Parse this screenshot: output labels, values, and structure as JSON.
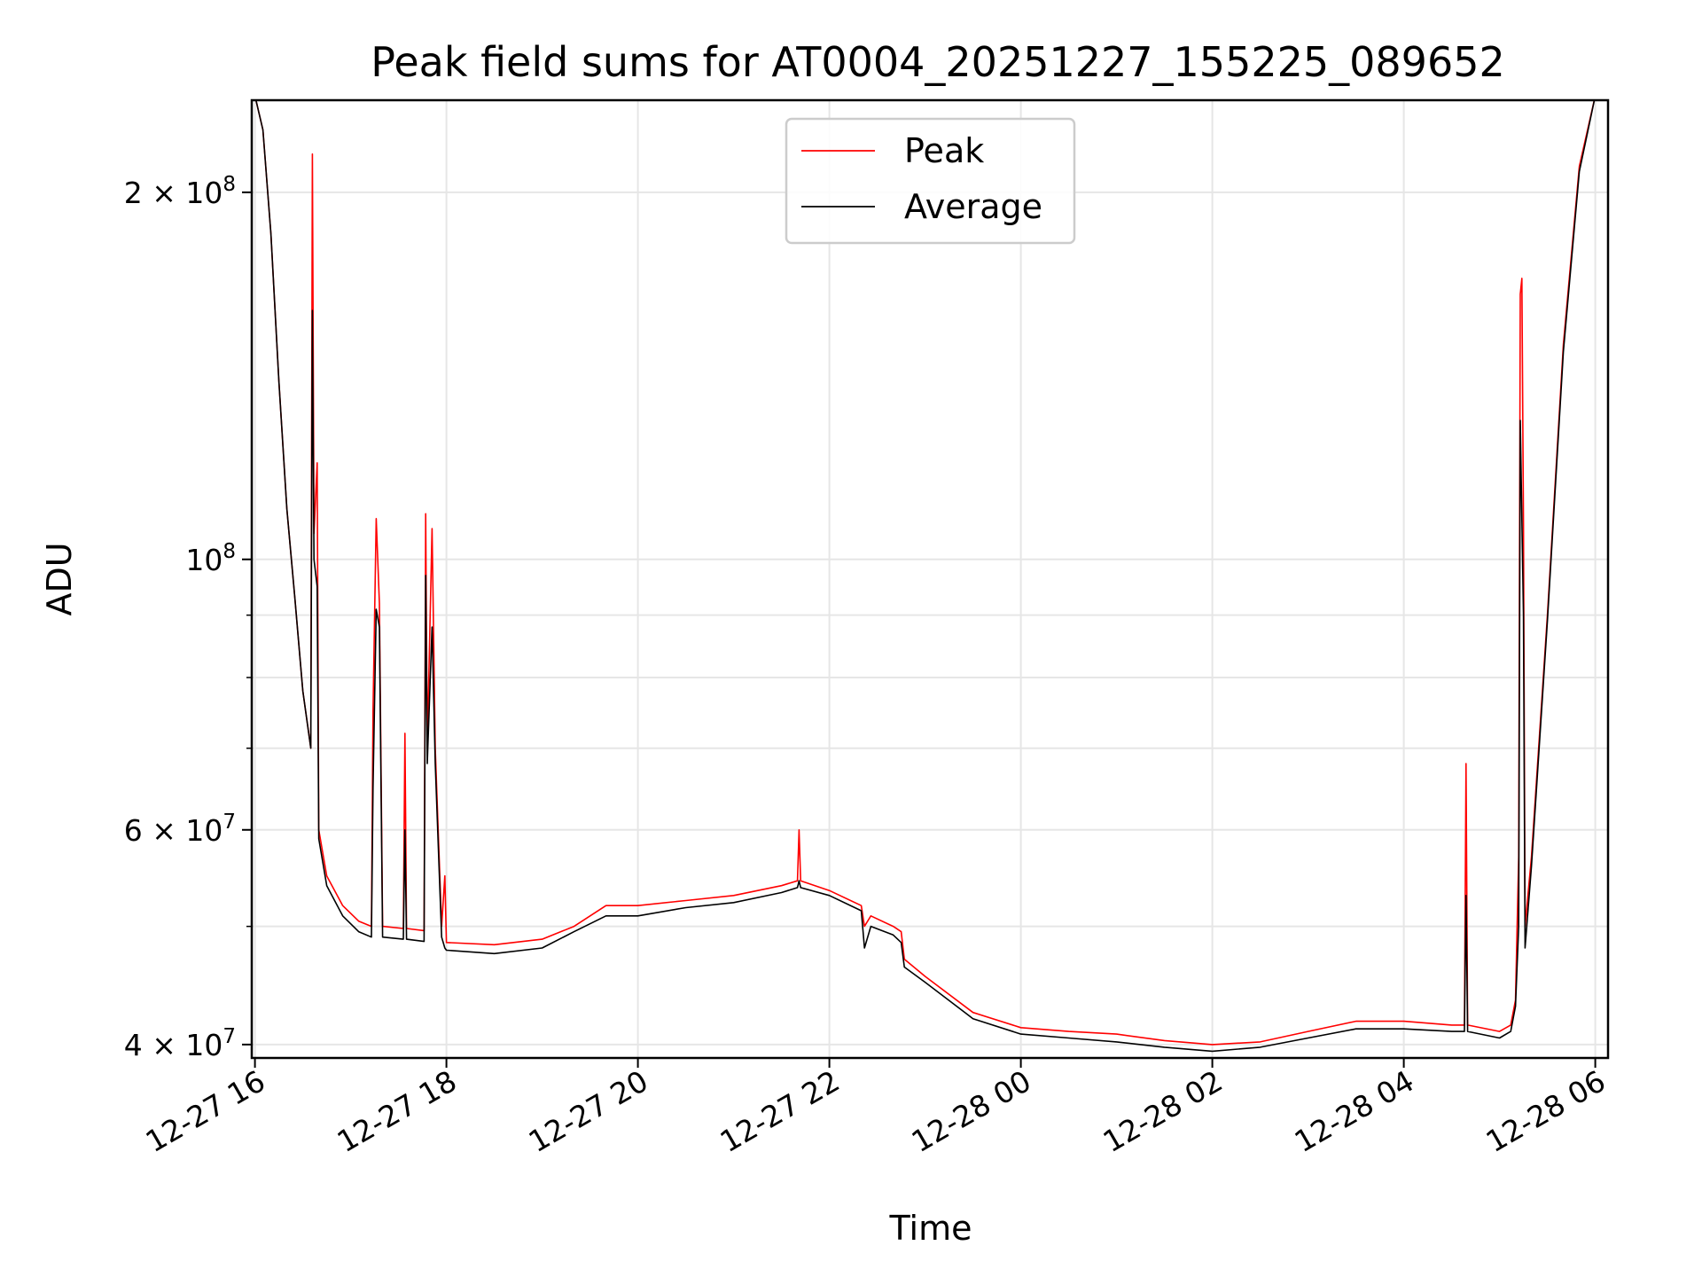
{
  "chart_data": {
    "type": "line",
    "title": "Peak field sums for AT0004_20251227_155225_089652",
    "xlabel": "Time",
    "ylabel": "ADU",
    "y_scale": "log",
    "grid": true,
    "legend_position": "top-center",
    "xlim": [
      "2025-12-27 15:58",
      "2025-12-28 06:08"
    ],
    "ylim": [
      39000000,
      238000000
    ],
    "x_ticks": [
      {
        "value": "2025-12-27 16:00",
        "label": "12-27 16"
      },
      {
        "value": "2025-12-27 18:00",
        "label": "12-27 18"
      },
      {
        "value": "2025-12-27 20:00",
        "label": "12-27 20"
      },
      {
        "value": "2025-12-27 22:00",
        "label": "12-27 22"
      },
      {
        "value": "2025-12-28 00:00",
        "label": "12-28 00"
      },
      {
        "value": "2025-12-28 02:00",
        "label": "12-28 02"
      },
      {
        "value": "2025-12-28 04:00",
        "label": "12-28 04"
      },
      {
        "value": "2025-12-28 06:00",
        "label": "12-28 06"
      }
    ],
    "y_ticks": [
      {
        "value": 40000000,
        "base": "4",
        "exp": "7"
      },
      {
        "value": 60000000,
        "base": "6",
        "exp": "7"
      },
      {
        "value": 100000000,
        "base": "",
        "exp": "8"
      },
      {
        "value": 200000000,
        "base": "2",
        "exp": "8"
      }
    ],
    "y_minor_ticks": [
      50000000,
      70000000,
      80000000,
      90000000
    ],
    "series": [
      {
        "name": "Peak",
        "color": "#ff0000",
        "points": [
          [
            "2025-12-27 16:00",
            240000000
          ],
          [
            "2025-12-27 16:05",
            225000000
          ],
          [
            "2025-12-27 16:10",
            185000000
          ],
          [
            "2025-12-27 16:15",
            140000000
          ],
          [
            "2025-12-27 16:20",
            110000000
          ],
          [
            "2025-12-27 16:25",
            93000000
          ],
          [
            "2025-12-27 16:30",
            78000000
          ],
          [
            "2025-12-27 16:35",
            70000000
          ],
          [
            "2025-12-27 16:36",
            215000000
          ],
          [
            "2025-12-27 16:37",
            105000000
          ],
          [
            "2025-12-27 16:39",
            120000000
          ],
          [
            "2025-12-27 16:40",
            60000000
          ],
          [
            "2025-12-27 16:45",
            55000000
          ],
          [
            "2025-12-27 16:55",
            52000000
          ],
          [
            "2025-12-27 17:05",
            50500000
          ],
          [
            "2025-12-27 17:13",
            50000000
          ],
          [
            "2025-12-27 17:14",
            75000000
          ],
          [
            "2025-12-27 17:16",
            108000000
          ],
          [
            "2025-12-27 17:18",
            92000000
          ],
          [
            "2025-12-27 17:20",
            50000000
          ],
          [
            "2025-12-27 17:33",
            49800000
          ],
          [
            "2025-12-27 17:34",
            72000000
          ],
          [
            "2025-12-27 17:35",
            49800000
          ],
          [
            "2025-12-27 17:46",
            49600000
          ],
          [
            "2025-12-27 17:47",
            109000000
          ],
          [
            "2025-12-27 17:48",
            70000000
          ],
          [
            "2025-12-27 17:51",
            106000000
          ],
          [
            "2025-12-27 17:53",
            70000000
          ],
          [
            "2025-12-27 17:57",
            50000000
          ],
          [
            "2025-12-27 17:59",
            55000000
          ],
          [
            "2025-12-27 18:00",
            48500000
          ],
          [
            "2025-12-27 18:30",
            48300000
          ],
          [
            "2025-12-27 19:00",
            48800000
          ],
          [
            "2025-12-27 19:20",
            50000000
          ],
          [
            "2025-12-27 19:40",
            52000000
          ],
          [
            "2025-12-27 20:00",
            52000000
          ],
          [
            "2025-12-27 20:30",
            52500000
          ],
          [
            "2025-12-27 21:00",
            53000000
          ],
          [
            "2025-12-27 21:30",
            54000000
          ],
          [
            "2025-12-27 21:40",
            54500000
          ],
          [
            "2025-12-27 21:41",
            60000000
          ],
          [
            "2025-12-27 21:42",
            54500000
          ],
          [
            "2025-12-27 22:00",
            53500000
          ],
          [
            "2025-12-27 22:20",
            52000000
          ],
          [
            "2025-12-27 22:22",
            50000000
          ],
          [
            "2025-12-27 22:26",
            51000000
          ],
          [
            "2025-12-27 22:40",
            50000000
          ],
          [
            "2025-12-27 22:45",
            49500000
          ],
          [
            "2025-12-27 22:47",
            47000000
          ],
          [
            "2025-12-27 23:00",
            45500000
          ],
          [
            "2025-12-27 23:30",
            42500000
          ],
          [
            "2025-12-28 00:00",
            41300000
          ],
          [
            "2025-12-28 00:30",
            41000000
          ],
          [
            "2025-12-28 01:00",
            40800000
          ],
          [
            "2025-12-28 01:30",
            40300000
          ],
          [
            "2025-12-28 02:00",
            40000000
          ],
          [
            "2025-12-28 02:30",
            40200000
          ],
          [
            "2025-12-28 03:00",
            41000000
          ],
          [
            "2025-12-28 03:30",
            41800000
          ],
          [
            "2025-12-28 04:00",
            41800000
          ],
          [
            "2025-12-28 04:30",
            41500000
          ],
          [
            "2025-12-28 04:38",
            41500000
          ],
          [
            "2025-12-28 04:39",
            68000000
          ],
          [
            "2025-12-28 04:40",
            41500000
          ],
          [
            "2025-12-28 05:00",
            41000000
          ],
          [
            "2025-12-28 05:07",
            41500000
          ],
          [
            "2025-12-28 05:10",
            43500000
          ],
          [
            "2025-12-28 05:12",
            57000000
          ],
          [
            "2025-12-28 05:13",
            165000000
          ],
          [
            "2025-12-28 05:14",
            170000000
          ],
          [
            "2025-12-28 05:15",
            107000000
          ],
          [
            "2025-12-28 05:16",
            50000000
          ],
          [
            "2025-12-28 05:20",
            57000000
          ],
          [
            "2025-12-28 05:30",
            90000000
          ],
          [
            "2025-12-28 05:40",
            150000000
          ],
          [
            "2025-12-28 05:50",
            210000000
          ],
          [
            "2025-12-28 06:00",
            240000000
          ]
        ]
      },
      {
        "name": "Average",
        "color": "#000000",
        "points": [
          [
            "2025-12-27 16:00",
            240000000
          ],
          [
            "2025-12-27 16:05",
            225000000
          ],
          [
            "2025-12-27 16:10",
            185000000
          ],
          [
            "2025-12-27 16:15",
            140000000
          ],
          [
            "2025-12-27 16:20",
            110000000
          ],
          [
            "2025-12-27 16:25",
            93000000
          ],
          [
            "2025-12-27 16:30",
            78000000
          ],
          [
            "2025-12-27 16:35",
            70000000
          ],
          [
            "2025-12-27 16:36",
            160000000
          ],
          [
            "2025-12-27 16:37",
            100000000
          ],
          [
            "2025-12-27 16:39",
            95000000
          ],
          [
            "2025-12-27 16:40",
            59000000
          ],
          [
            "2025-12-27 16:45",
            54000000
          ],
          [
            "2025-12-27 16:55",
            51000000
          ],
          [
            "2025-12-27 17:05",
            49500000
          ],
          [
            "2025-12-27 17:13",
            49000000
          ],
          [
            "2025-12-27 17:14",
            65000000
          ],
          [
            "2025-12-27 17:16",
            91000000
          ],
          [
            "2025-12-27 17:18",
            88000000
          ],
          [
            "2025-12-27 17:20",
            49000000
          ],
          [
            "2025-12-27 17:33",
            48800000
          ],
          [
            "2025-12-27 17:34",
            60000000
          ],
          [
            "2025-12-27 17:35",
            48800000
          ],
          [
            "2025-12-27 17:46",
            48600000
          ],
          [
            "2025-12-27 17:47",
            97000000
          ],
          [
            "2025-12-27 17:48",
            68000000
          ],
          [
            "2025-12-27 17:51",
            88000000
          ],
          [
            "2025-12-27 17:53",
            68000000
          ],
          [
            "2025-12-27 17:57",
            49000000
          ],
          [
            "2025-12-27 17:59",
            48000000
          ],
          [
            "2025-12-27 18:00",
            47800000
          ],
          [
            "2025-12-27 18:30",
            47500000
          ],
          [
            "2025-12-27 19:00",
            48000000
          ],
          [
            "2025-12-27 19:20",
            49500000
          ],
          [
            "2025-12-27 19:40",
            51000000
          ],
          [
            "2025-12-27 20:00",
            51000000
          ],
          [
            "2025-12-27 20:30",
            51800000
          ],
          [
            "2025-12-27 21:00",
            52300000
          ],
          [
            "2025-12-27 21:30",
            53300000
          ],
          [
            "2025-12-27 21:40",
            53800000
          ],
          [
            "2025-12-27 21:41",
            54500000
          ],
          [
            "2025-12-27 21:42",
            53800000
          ],
          [
            "2025-12-27 22:00",
            53000000
          ],
          [
            "2025-12-27 22:20",
            51500000
          ],
          [
            "2025-12-27 22:22",
            48000000
          ],
          [
            "2025-12-27 22:26",
            50000000
          ],
          [
            "2025-12-27 22:40",
            49200000
          ],
          [
            "2025-12-27 22:45",
            48500000
          ],
          [
            "2025-12-27 22:47",
            46300000
          ],
          [
            "2025-12-27 23:00",
            45000000
          ],
          [
            "2025-12-27 23:30",
            42000000
          ],
          [
            "2025-12-28 00:00",
            40800000
          ],
          [
            "2025-12-28 00:30",
            40500000
          ],
          [
            "2025-12-28 01:00",
            40200000
          ],
          [
            "2025-12-28 01:30",
            39800000
          ],
          [
            "2025-12-28 02:00",
            39500000
          ],
          [
            "2025-12-28 02:30",
            39800000
          ],
          [
            "2025-12-28 03:00",
            40500000
          ],
          [
            "2025-12-28 03:30",
            41200000
          ],
          [
            "2025-12-28 04:00",
            41200000
          ],
          [
            "2025-12-28 04:30",
            41000000
          ],
          [
            "2025-12-28 04:38",
            41000000
          ],
          [
            "2025-12-28 04:39",
            53000000
          ],
          [
            "2025-12-28 04:40",
            41000000
          ],
          [
            "2025-12-28 05:00",
            40500000
          ],
          [
            "2025-12-28 05:07",
            41000000
          ],
          [
            "2025-12-28 05:10",
            43000000
          ],
          [
            "2025-12-28 05:12",
            50000000
          ],
          [
            "2025-12-28 05:13",
            130000000
          ],
          [
            "2025-12-28 05:14",
            108000000
          ],
          [
            "2025-12-28 05:15",
            90000000
          ],
          [
            "2025-12-28 05:16",
            48000000
          ],
          [
            "2025-12-28 05:20",
            56000000
          ],
          [
            "2025-12-28 05:30",
            89000000
          ],
          [
            "2025-12-28 05:40",
            148000000
          ],
          [
            "2025-12-28 05:50",
            208000000
          ],
          [
            "2025-12-28 06:00",
            240000000
          ]
        ]
      }
    ]
  }
}
